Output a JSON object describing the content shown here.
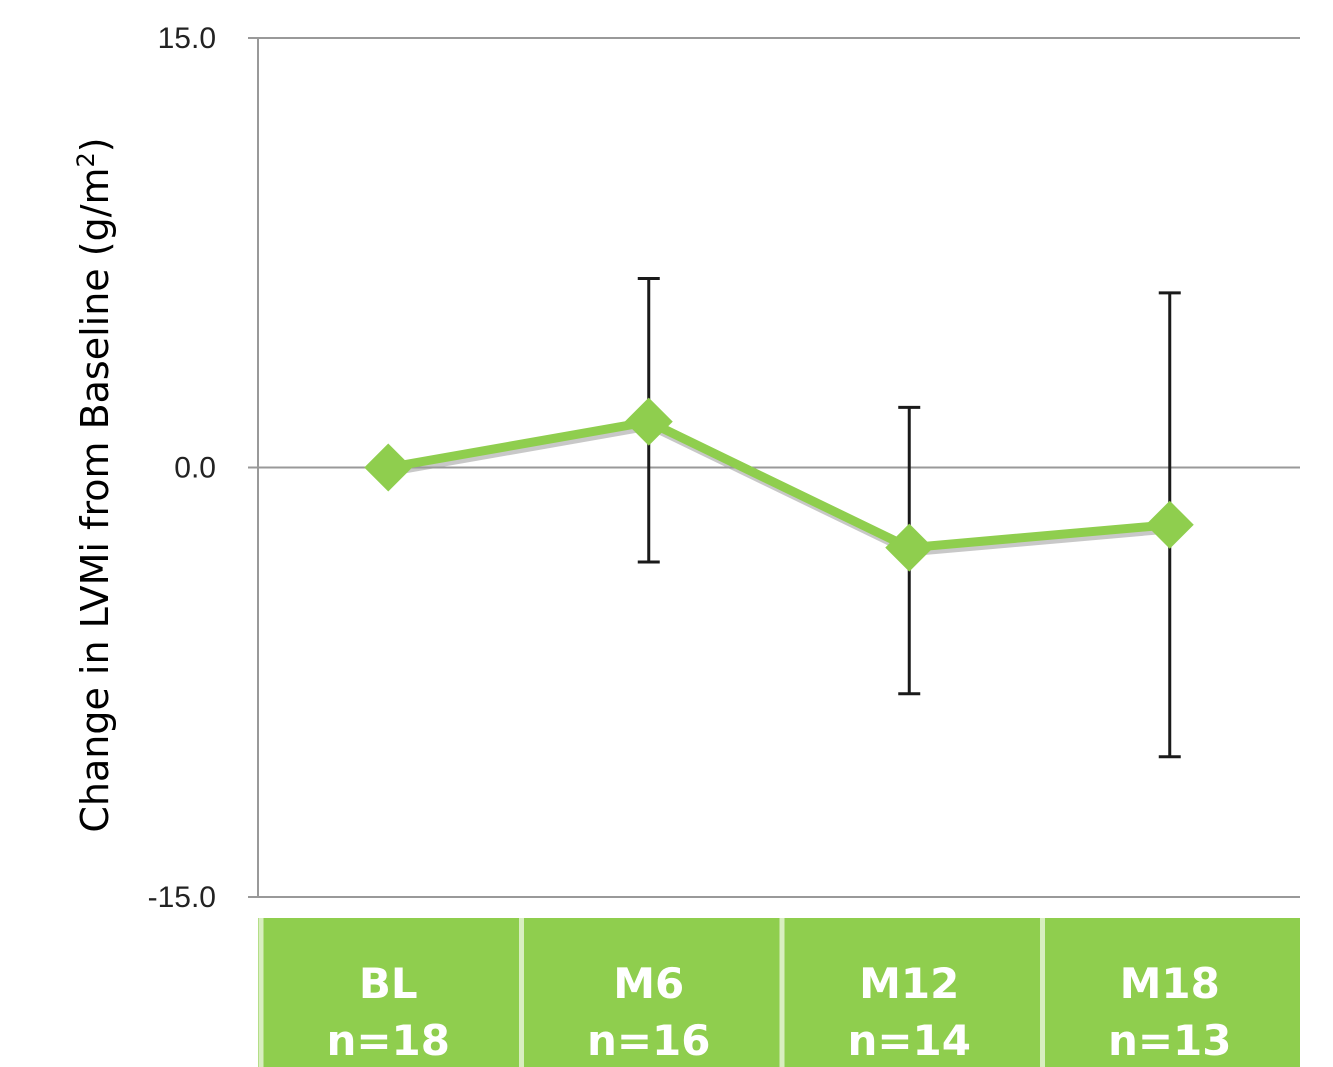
{
  "chart_data": {
    "type": "line",
    "title": "",
    "ylabel": "Change in LVMi from Baseline (g/m",
    "ylabel_superscript": "2",
    "ylabel_suffix": ")",
    "ylim": [
      -15,
      15
    ],
    "yticks": [
      "15.0",
      "0.0",
      "-15.0"
    ],
    "ytick_values": [
      15,
      0,
      -15
    ],
    "grid": "horizontal zero line only",
    "categories": [
      {
        "label": "BL",
        "n": "n=18"
      },
      {
        "label": "M6",
        "n": "n=16"
      },
      {
        "label": "M12",
        "n": "n=14"
      },
      {
        "label": "M18",
        "n": "n=13"
      }
    ],
    "series": [
      {
        "values": [
          0.0,
          1.6,
          -2.8,
          -2.0
        ],
        "error_upper": [
          null,
          6.6,
          2.1,
          6.1
        ],
        "error_lower": [
          null,
          -3.3,
          -7.9,
          -10.1
        ]
      }
    ],
    "colors": {
      "line": "#8fce4e",
      "marker": "#8fce4e",
      "category_box": "#8fce4e",
      "category_divider": "#d8eec0",
      "error_bar": "#1a1a1a",
      "axis": "#999999"
    }
  }
}
